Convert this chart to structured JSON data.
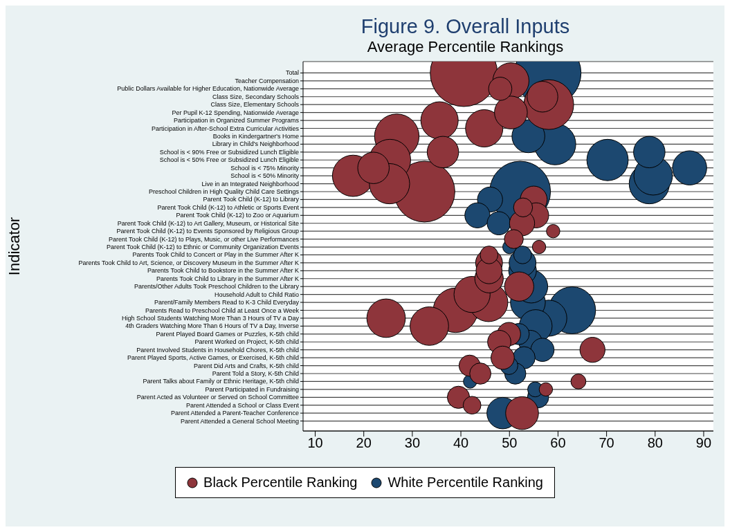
{
  "chart_data": {
    "type": "bubble",
    "title": "Figure 9.  Overall Inputs",
    "subtitle": "Average Percentile Rankings",
    "ylabel": "Indicator",
    "categories": [
      "Total",
      "Teacher Compensation",
      "Public Dollars Available for Higher Education, Nationwide Average",
      "Class Size, Secondary Schools",
      "Class Size, Elementary Schools",
      "Per Pupil K-12 Spending, Nationwide Average",
      "Participation in Organized Summer Programs",
      "Participation in After-School Extra Curricular Activities",
      "Books in Kindergartner's Home",
      "Library in Child's Neighborhood",
      "School is < 90%  Free or Subsidized Lunch Eligible",
      "School is < 50% Free or Subsidized Lunch Eligible",
      "School is < 75% Minority",
      "School is < 50% Minority",
      "Live in an Integrated Neighborhood",
      "Preschool Children in High Quality Child Care Settings",
      "Parent Took Child (K-12) to Library",
      "Parent Took Child (K-12) to Athletic or Sports Event",
      "Parent Took Child (K-12) to Zoo or Aquarium",
      "Parent Took Child (K-12) to Art Gallery, Museum, or Historical Site",
      "Parent Took Child (K-12) to Events Sponsored by Religious Group",
      "Parent Took Child (K-12) to Plays, Music, or other Live Performances",
      "Parent Took Child (K-12) to Ethnic or Community Organization Events",
      "Parents Took Child to Concert or Play in the Summer After K",
      "Parents Took Child to Art, Science, or Discovery Museum in the Summer After K",
      "Parents Took Child to Bookstore in the Summer After K",
      "Parents Took Child to Library in the Summer After K",
      "Parents/Other Adults Took Preschool Children to the Library",
      "Household Adult to Child Ratio",
      "Parent/Family Members Read to K-3 Child Everyday",
      "Parents Read to Preschool Child at Least Once a Week",
      "High School Students Watching More Than 3 Hours of TV a Day",
      "4th Graders Watching More Than 6 Hours of TV a Day, Inverse",
      "Parent Played Board Games or Puzzles, K-5th child",
      "Parent Worked on Project, K-5th child",
      "Parent Involved Students in Household Chores, K-5th child",
      "Parent Played Sports, Active Games, or Exercised, K-5th child",
      "Parent Did Arts and Crafts, K-5th child",
      "Parent Told a Story, K-5th Child",
      "Parent Talks about Family or Ethnic Heritage, K-5th child",
      "Parent Participated in Fundraising",
      "Parent Acted as Volunteer or Served on School Committee",
      "Parent Attended a School or Class Event",
      "Parent Attended a Parent-Teacher Conference",
      "Parent Attended a General School Meeting"
    ],
    "series": [
      {
        "name": "White Percentile Ranking",
        "color": "#1c4870",
        "values": [
          57.9,
          null,
          null,
          null,
          null,
          null,
          null,
          null,
          53.9,
          59.4,
          78.8,
          70.2,
          87.1,
          79.6,
          78.8,
          52.2,
          46.0,
          null,
          43.4,
          47.8,
          null,
          null,
          50.0,
          52.7,
          52.7,
          52.7,
          null,
          54.5,
          null,
          53.8,
          62.9,
          58.1,
          55.4,
          51.9,
          54.3,
          56.8,
          53.0,
          49.9,
          51.2,
          41.9,
          55.3,
          55.9,
          null,
          48.6,
          null
        ],
        "sizes": [
          0.98,
          null,
          null,
          null,
          null,
          null,
          null,
          null,
          0.24,
          0.38,
          0.22,
          0.38,
          0.26,
          0.33,
          0.36,
          0.82,
          0.14,
          null,
          0.14,
          0.12,
          null,
          null,
          0.04,
          0.07,
          0.16,
          0.17,
          null,
          0.24,
          null,
          0.27,
          0.49,
          0.29,
          0.24,
          0.1,
          0.12,
          0.12,
          0.11,
          0.07,
          0.1,
          0.04,
          0.05,
          0.1,
          null,
          0.22,
          null
        ]
      },
      {
        "name": "Black Percentile Ranking",
        "color": "#8e353b",
        "values": [
          40.6,
          50.3,
          48.1,
          56.8,
          58.1,
          50.3,
          35.6,
          44.8,
          26.8,
          null,
          36.3,
          25.4,
          22.0,
          17.8,
          25.3,
          32.5,
          55.0,
          52.8,
          55.5,
          52.6,
          59.0,
          50.9,
          56.1,
          45.8,
          45.8,
          45.8,
          45.8,
          52.0,
          42.3,
          45.7,
          38.9,
          24.6,
          33.5,
          49.9,
          47.9,
          67.1,
          48.6,
          41.8,
          44.0,
          64.2,
          57.5,
          39.5,
          42.3,
          52.6,
          null
        ],
        "sizes": [
          1,
          0.29,
          0.12,
          0.21,
          0.55,
          0.24,
          0.31,
          0.31,
          0.44,
          null,
          0.22,
          0.38,
          0.22,
          0.38,
          0.36,
          0.82,
          0.16,
          0.08,
          0.14,
          0.14,
          0.04,
          0.08,
          0.04,
          0.07,
          0.16,
          0.15,
          0.18,
          0.19,
          0.29,
          0.33,
          0.44,
          0.33,
          0.33,
          0.12,
          0.12,
          0.14,
          0.12,
          0.1,
          0.1,
          0.05,
          0.04,
          0.11,
          0.07,
          0.24,
          null
        ]
      }
    ],
    "xlim": [
      7.5,
      92
    ],
    "xticks": [
      10,
      20,
      30,
      40,
      50,
      60,
      70,
      80,
      90
    ],
    "grid": "y",
    "legend": "bottom",
    "orientation": "horizontal"
  }
}
